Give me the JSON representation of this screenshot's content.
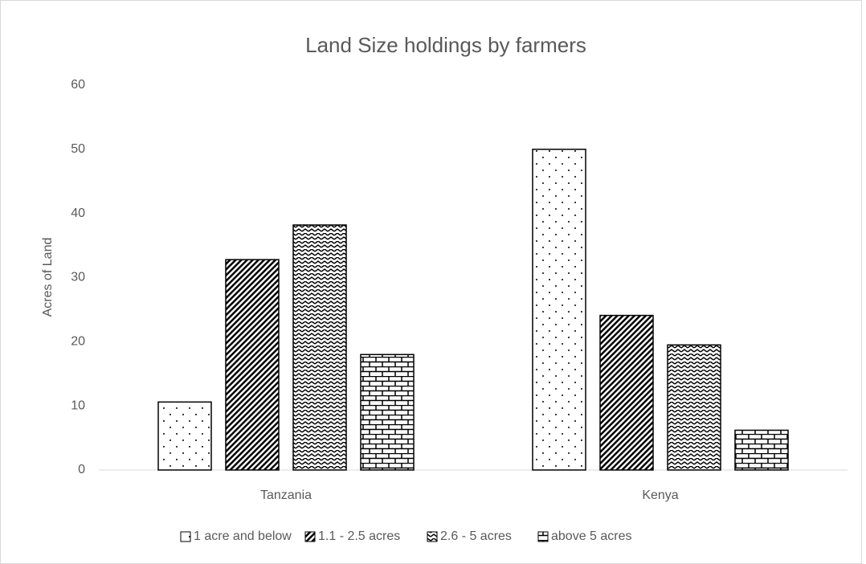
{
  "chart_data": {
    "type": "bar",
    "title": "Land Size holdings by farmers",
    "y_label": "Acres of Land",
    "categories": [
      "Tanzania",
      "Kenya"
    ],
    "series": [
      {
        "name": "1 acre and below",
        "color": "#000000",
        "pattern": "dots",
        "values": [
          10.6,
          50
        ]
      },
      {
        "name": "1.1 - 2.5 acres",
        "color": "#000000",
        "pattern": "dense-diagonal",
        "values": [
          32.8,
          24.1
        ]
      },
      {
        "name": "2.6 - 5 acres",
        "color": "#000000",
        "pattern": "zigzag",
        "values": [
          38.2,
          19.5
        ]
      },
      {
        "name": "above 5 acres",
        "color": "#000000",
        "pattern": "brick",
        "values": [
          18,
          6.2
        ]
      }
    ],
    "ylim": [
      0,
      60
    ],
    "yticks": [
      0,
      10,
      20,
      30,
      40,
      50,
      60
    ],
    "grid": false,
    "legend": "bottom"
  }
}
